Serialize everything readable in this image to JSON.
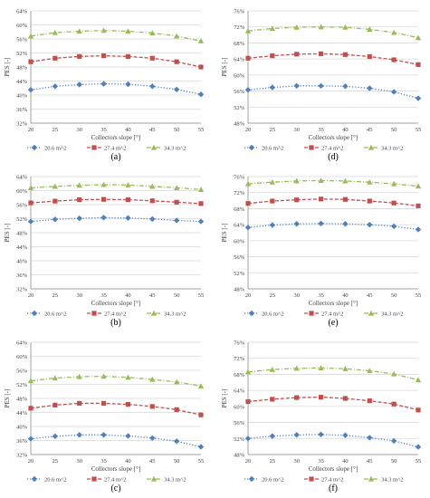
{
  "chart_data": [
    {
      "panel_label": "(a)",
      "type": "line",
      "xlabel": "Collectors slope [°]",
      "ylabel": "PES [-]",
      "x": [
        20,
        25,
        30,
        35,
        40,
        45,
        50,
        55
      ],
      "ylim": [
        32,
        64
      ],
      "yticks": [
        32,
        36,
        40,
        44,
        48,
        52,
        56,
        60,
        64
      ],
      "ytick_labels": [
        "32%",
        "36%",
        "40%",
        "44%",
        "48%",
        "52%",
        "56%",
        "60%",
        "64%"
      ],
      "grid": true,
      "legend": "bottom",
      "series": [
        {
          "name": "20.6 m^2",
          "color": "#4f81bd",
          "marker": "diamond",
          "line": "dotted",
          "values": [
            41.5,
            42.5,
            43.0,
            43.2,
            43.1,
            42.5,
            41.6,
            40.2
          ]
        },
        {
          "name": "27.4 m^2",
          "color": "#c0504d",
          "marker": "square",
          "line": "dashed",
          "values": [
            49.5,
            50.5,
            51.0,
            51.2,
            51.0,
            50.5,
            49.5,
            48.0
          ]
        },
        {
          "name": "34.3 m^2",
          "color": "#9bbb59",
          "marker": "triangle",
          "line": "dashdot",
          "values": [
            56.8,
            57.8,
            58.2,
            58.4,
            58.2,
            57.7,
            56.8,
            55.4
          ]
        }
      ]
    },
    {
      "panel_label": "(d)",
      "type": "line",
      "xlabel": "Collectors slope [°]",
      "ylabel": "PES [-]",
      "x": [
        20,
        25,
        30,
        35,
        40,
        45,
        50,
        55
      ],
      "ylim": [
        48,
        76
      ],
      "yticks": [
        48,
        52,
        56,
        60,
        64,
        68,
        72,
        76
      ],
      "ytick_labels": [
        "48%",
        "52%",
        "56%",
        "60%",
        "64%",
        "68%",
        "72%",
        "76%"
      ],
      "grid": true,
      "legend": "bottom",
      "series": [
        {
          "name": "20.6 m^2",
          "color": "#4f81bd",
          "marker": "diamond",
          "line": "dotted",
          "values": [
            56.3,
            56.9,
            57.3,
            57.3,
            57.2,
            56.7,
            55.8,
            54.2
          ]
        },
        {
          "name": "27.4 m^2",
          "color": "#c0504d",
          "marker": "square",
          "line": "dashed",
          "values": [
            64.2,
            64.8,
            65.2,
            65.3,
            65.1,
            64.6,
            63.8,
            62.6
          ]
        },
        {
          "name": "34.3 m^2",
          "color": "#9bbb59",
          "marker": "triangle",
          "line": "dashdot",
          "values": [
            71.0,
            71.6,
            71.9,
            72.0,
            71.9,
            71.4,
            70.6,
            69.3
          ]
        }
      ]
    },
    {
      "panel_label": "(b)",
      "type": "line",
      "xlabel": "Collectors slope [°]",
      "ylabel": "PES [-]",
      "x": [
        20,
        25,
        30,
        35,
        40,
        45,
        50,
        55
      ],
      "ylim": [
        32,
        64
      ],
      "yticks": [
        32,
        36,
        40,
        44,
        48,
        52,
        56,
        60,
        64
      ],
      "ytick_labels": [
        "32%",
        "36%",
        "40%",
        "44%",
        "48%",
        "52%",
        "56%",
        "60%",
        "64%"
      ],
      "grid": true,
      "legend": "bottom",
      "series": [
        {
          "name": "20.6 m^2",
          "color": "#4f81bd",
          "marker": "diamond",
          "line": "dotted",
          "values": [
            51.2,
            51.8,
            52.1,
            52.3,
            52.2,
            51.9,
            51.5,
            51.2
          ]
        },
        {
          "name": "27.4 m^2",
          "color": "#c0504d",
          "marker": "square",
          "line": "dashed",
          "values": [
            56.5,
            57.0,
            57.4,
            57.5,
            57.4,
            57.1,
            56.7,
            56.3
          ]
        },
        {
          "name": "34.3 m^2",
          "color": "#9bbb59",
          "marker": "triangle",
          "line": "dashdot",
          "values": [
            60.8,
            61.2,
            61.5,
            61.7,
            61.6,
            61.2,
            60.8,
            60.3
          ]
        }
      ]
    },
    {
      "panel_label": "(e)",
      "type": "line",
      "xlabel": "Collectors slope [°]",
      "ylabel": "PES [-]",
      "x": [
        20,
        25,
        30,
        35,
        40,
        45,
        50,
        55
      ],
      "ylim": [
        48,
        76
      ],
      "yticks": [
        48,
        52,
        56,
        60,
        64,
        68,
        72,
        76
      ],
      "ytick_labels": [
        "48%",
        "52%",
        "56%",
        "60%",
        "64%",
        "68%",
        "72%",
        "76%"
      ],
      "grid": true,
      "legend": "bottom",
      "series": [
        {
          "name": "20.6 m^2",
          "color": "#4f81bd",
          "marker": "diamond",
          "line": "dotted",
          "values": [
            63.3,
            63.9,
            64.2,
            64.3,
            64.2,
            64.0,
            63.6,
            62.8
          ]
        },
        {
          "name": "27.4 m^2",
          "color": "#c0504d",
          "marker": "square",
          "line": "dashed",
          "values": [
            69.3,
            69.9,
            70.2,
            70.4,
            70.3,
            69.9,
            69.4,
            68.7
          ]
        },
        {
          "name": "34.3 m^2",
          "color": "#9bbb59",
          "marker": "triangle",
          "line": "dashdot",
          "values": [
            74.2,
            74.6,
            74.9,
            75.0,
            74.9,
            74.6,
            74.2,
            73.6
          ]
        }
      ]
    },
    {
      "panel_label": "(c)",
      "type": "line",
      "xlabel": "Collectors slope [°]",
      "ylabel": "PES [-]",
      "x": [
        20,
        25,
        30,
        35,
        40,
        45,
        50,
        55
      ],
      "ylim": [
        32,
        64
      ],
      "yticks": [
        32,
        36,
        40,
        44,
        48,
        52,
        56,
        60,
        64
      ],
      "ytick_labels": [
        "32%",
        "36%",
        "40%",
        "44%",
        "48%",
        "52%",
        "56%",
        "60%",
        "64%"
      ],
      "grid": true,
      "legend": "bottom",
      "series": [
        {
          "name": "20.6 m^2",
          "color": "#4f81bd",
          "marker": "diamond",
          "line": "dotted",
          "values": [
            36.5,
            37.2,
            37.6,
            37.6,
            37.3,
            36.7,
            35.8,
            34.2
          ]
        },
        {
          "name": "27.4 m^2",
          "color": "#c0504d",
          "marker": "square",
          "line": "dashed",
          "values": [
            45.2,
            46.1,
            46.6,
            46.6,
            46.3,
            45.7,
            44.8,
            43.3
          ]
        },
        {
          "name": "34.3 m^2",
          "color": "#9bbb59",
          "marker": "triangle",
          "line": "dashdot",
          "values": [
            53.0,
            53.8,
            54.2,
            54.3,
            54.0,
            53.4,
            52.7,
            51.5
          ]
        }
      ]
    },
    {
      "panel_label": "(f)",
      "type": "line",
      "xlabel": "Collectors slope [°]",
      "ylabel": "PES [-]",
      "x": [
        20,
        25,
        30,
        35,
        40,
        45,
        50,
        55
      ],
      "ylim": [
        48,
        76
      ],
      "yticks": [
        48,
        52,
        56,
        60,
        64,
        68,
        72,
        76
      ],
      "ytick_labels": [
        "48%",
        "52%",
        "56%",
        "60%",
        "64%",
        "68%",
        "72%",
        "76%"
      ],
      "grid": true,
      "legend": "bottom",
      "series": [
        {
          "name": "20.6 m^2",
          "color": "#4f81bd",
          "marker": "diamond",
          "line": "dotted",
          "values": [
            52.0,
            52.6,
            52.9,
            53.0,
            52.8,
            52.2,
            51.4,
            49.9
          ]
        },
        {
          "name": "27.4 m^2",
          "color": "#c0504d",
          "marker": "square",
          "line": "dashed",
          "values": [
            61.2,
            61.8,
            62.2,
            62.3,
            62.0,
            61.4,
            60.6,
            59.1
          ]
        },
        {
          "name": "34.3 m^2",
          "color": "#9bbb59",
          "marker": "triangle",
          "line": "dashdot",
          "values": [
            68.6,
            69.2,
            69.5,
            69.6,
            69.4,
            68.9,
            68.1,
            66.6
          ]
        }
      ]
    }
  ]
}
